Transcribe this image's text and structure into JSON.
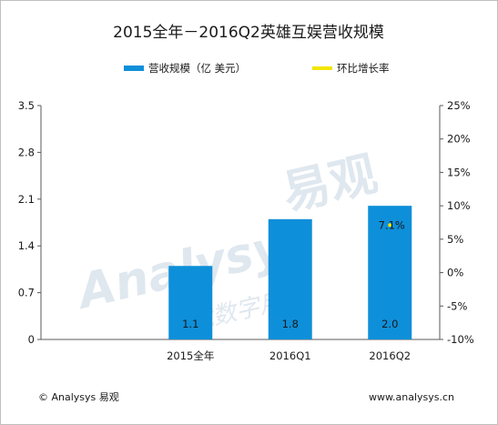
{
  "chart_data": {
    "type": "bar",
    "title": "2015全年－2016Q2英雄互娱营收规模",
    "categories": [
      "2015全年",
      "2016Q1",
      "2016Q2"
    ],
    "series": [
      {
        "name": "营收规模（亿 美元）",
        "type": "bar",
        "axis": "left",
        "values": [
          1.1,
          1.8,
          2.0
        ],
        "labels": [
          "1.1",
          "1.8",
          "2.0"
        ],
        "color": "#0e8fd9"
      },
      {
        "name": "环比增长率",
        "type": "line",
        "axis": "right",
        "values": [
          null,
          null,
          7.1
        ],
        "labels": [
          "",
          "",
          "7.1%"
        ],
        "color": "#f2e600"
      }
    ],
    "y_left": {
      "ticks": [
        "0",
        "0.7",
        "1.4",
        "2.1",
        "2.8",
        "3.5"
      ],
      "ylim": [
        0,
        3.5
      ]
    },
    "y_right": {
      "ticks": [
        "-10%",
        "-5%",
        "0%",
        "5%",
        "10%",
        "15%",
        "20%",
        "25%"
      ],
      "ylim": [
        -10,
        25
      ]
    },
    "legend": "top",
    "grid": false,
    "watermark": {
      "latin": "Analysys",
      "cn": "易观",
      "slogan": "成就数字用户"
    }
  },
  "footer": {
    "left": "© Analysys 易观",
    "right": "www.analysys.cn"
  }
}
